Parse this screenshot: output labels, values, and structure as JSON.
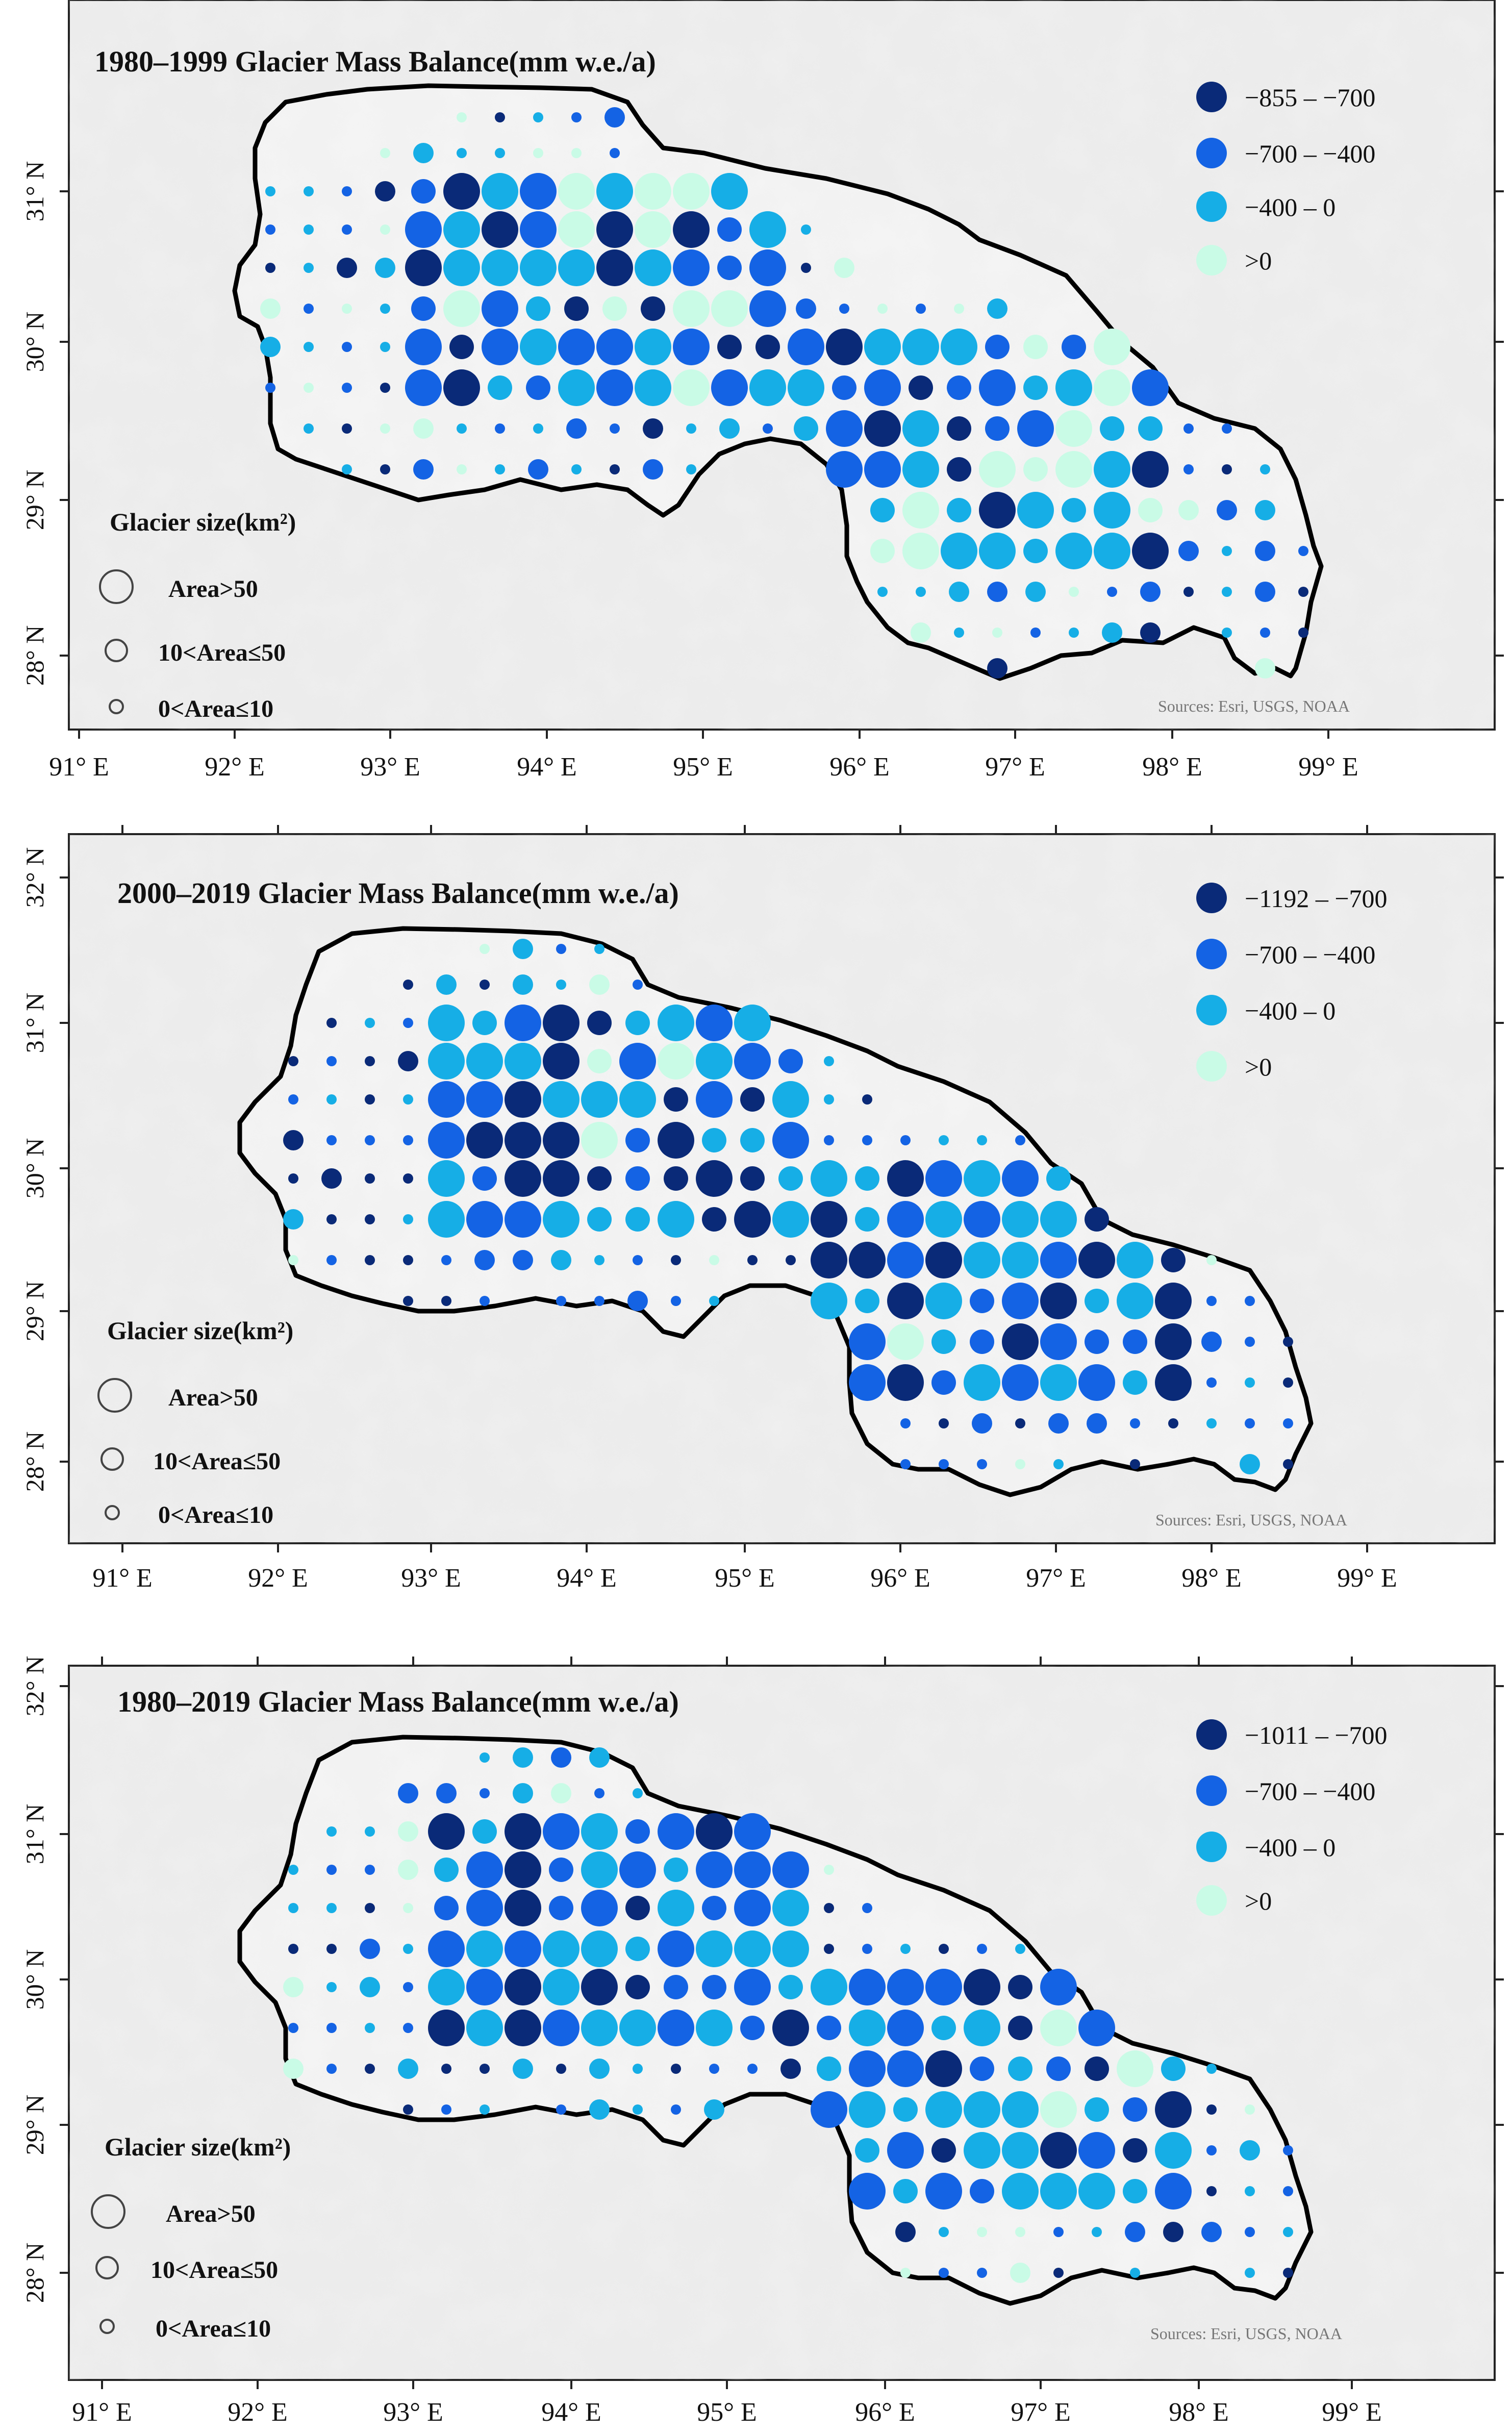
{
  "attribution": "Sources: Esri, USGS, NOAA",
  "size_legend": {
    "title": "Glacier size(km²)",
    "classes": [
      {
        "label": "Area>50",
        "size": "large"
      },
      {
        "label": "10<Area≤50",
        "size": "medium"
      },
      {
        "label": "0<Area≤10",
        "size": "small"
      }
    ]
  },
  "colors": {
    "class1": "#0a2a78",
    "class2": "#1463e4",
    "class3": "#16aee6",
    "class4": "#c9fbe6",
    "boundary": "#000000",
    "background": "#eeeeee"
  },
  "longitude_labels": [
    "91° E",
    "92° E",
    "93° E",
    "94° E",
    "95° E",
    "96° E",
    "97° E",
    "98° E",
    "99° E"
  ],
  "latitude_labels": [
    "28° N",
    "29° N",
    "30° N",
    "31° N",
    "32° N"
  ],
  "panels": [
    {
      "title": "1980–1999 Glacier Mass Balance(mm w.e./a)",
      "legend": [
        "−855 – −700",
        "−700 – −400",
        "−400 – 0",
        ">0"
      ],
      "lat_labels": [
        "28° N",
        "29° N",
        "30° N",
        "31° N"
      ],
      "seed": 11
    },
    {
      "title": "2000–2019 Glacier Mass Balance(mm w.e./a)",
      "legend": [
        "−1192 – −700",
        "−700 – −400",
        "−400 – 0",
        ">0"
      ],
      "lat_labels": [
        "28° N",
        "29° N",
        "30° N",
        "31° N",
        "32° N"
      ],
      "seed": 23
    },
    {
      "title": "1980–2019 Glacier Mass Balance(mm w.e./a)",
      "legend": [
        "−1011 – −700",
        "−700 – −400",
        "−400 – 0",
        ">0"
      ],
      "lat_labels": [
        "28° N",
        "29° N",
        "30° N",
        "31° N",
        "32° N"
      ],
      "seed": 37
    }
  ]
}
